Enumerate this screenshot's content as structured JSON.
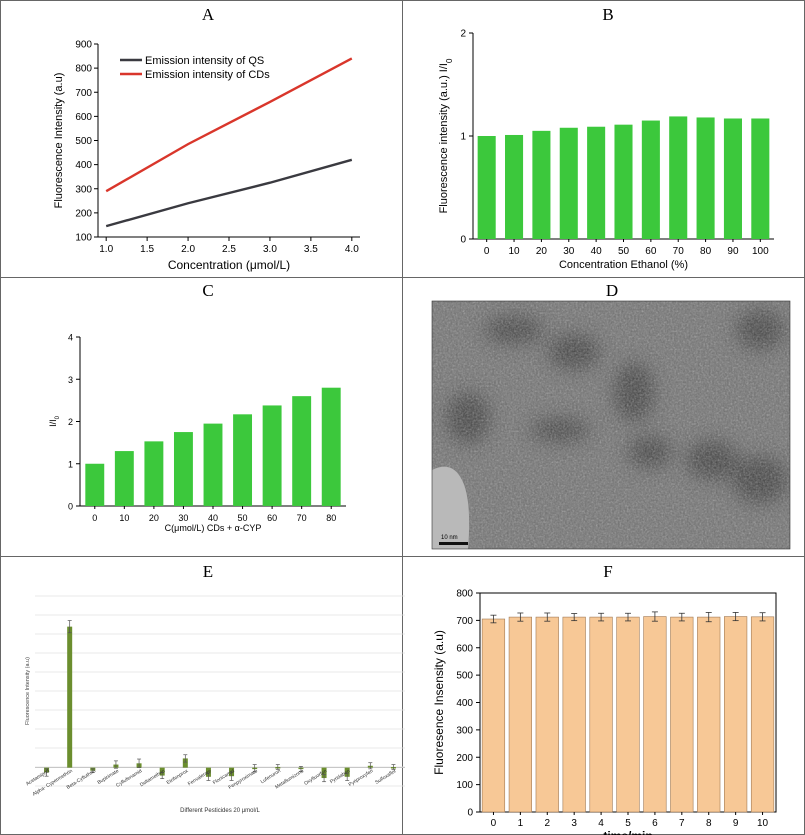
{
  "panels": {
    "A": "A",
    "B": "B",
    "C": "C",
    "D": "D",
    "E": "E",
    "F": "F"
  },
  "colors": {
    "green": "#3cc83c",
    "dark_line": "#3a3a40",
    "red_line": "#d9362b",
    "olive": "#6b8e2e",
    "peach": "#f7c896"
  },
  "chart_data": [
    {
      "panel": "A",
      "type": "line",
      "xlabel": "Concentration (μmol/L)",
      "ylabel": "Fluorescence Intensity (a.u)",
      "x": [
        1.0,
        2.0,
        3.0,
        4.0
      ],
      "xticks": [
        "1.0",
        "1.5",
        "2.0",
        "2.5",
        "3.0",
        "3.5",
        "4.0"
      ],
      "yticks": [
        "100",
        "200",
        "300",
        "400",
        "500",
        "600",
        "700",
        "800",
        "900"
      ],
      "ylim": [
        100,
        900
      ],
      "xlim": [
        0.9,
        4.1
      ],
      "series": [
        {
          "name": "Emission intensity of QS",
          "values": [
            145,
            240,
            325,
            420
          ],
          "color": "#3a3a40"
        },
        {
          "name": "Emission intensity of CDs",
          "values": [
            290,
            485,
            660,
            840
          ],
          "color": "#d9362b"
        }
      ],
      "legend": "top-left"
    },
    {
      "panel": "B",
      "type": "bar",
      "xlabel": "Concentration Ethanol (%)",
      "ylabel": "Fluorescence intensity (a.u.) I/I",
      "ylabel_sub": "0",
      "categories": [
        "0",
        "10",
        "20",
        "30",
        "40",
        "50",
        "60",
        "70",
        "80",
        "90",
        "100"
      ],
      "values": [
        1.0,
        1.01,
        1.05,
        1.08,
        1.09,
        1.11,
        1.15,
        1.19,
        1.18,
        1.17,
        1.17
      ],
      "yticks": [
        "0",
        "1",
        "2"
      ],
      "ylim": [
        0,
        2
      ]
    },
    {
      "panel": "C",
      "type": "bar",
      "xlabel": "C(μmol/L) CDs + α-CYP",
      "ylabel": "I/I",
      "ylabel_sub": "0",
      "categories": [
        "0",
        "10",
        "20",
        "30",
        "40",
        "50",
        "60",
        "70",
        "80"
      ],
      "values": [
        1.0,
        1.3,
        1.53,
        1.75,
        1.95,
        2.17,
        2.38,
        2.6,
        2.8
      ],
      "yticks": [
        "0",
        "1",
        "2",
        "3",
        "4"
      ],
      "ylim": [
        0,
        4
      ]
    },
    {
      "panel": "E",
      "type": "bar",
      "xlabel": "Different Pesticides 20 μmol/L",
      "ylabel": "Fluorescence Intensity (a.u)",
      "categories": [
        "Acetamiprid",
        "Alpha- Cypermethrin",
        "Beta-Cyfluthrin",
        "Bupirimate",
        "Cyflufenamid",
        "Deltamethrin",
        "Etofenprox",
        "Fenvalerate",
        "Flonicamid",
        "Fenpyroximate",
        "Lufenuron",
        "Metaflumizone",
        "Oxyfluorfen",
        "Pyridaben",
        "Pyriproxyfen",
        "Sulfoxaflor"
      ],
      "values": [
        -8,
        230,
        -5,
        5,
        7,
        -13,
        15,
        -15,
        -14,
        -1,
        1,
        -2,
        -17,
        -15,
        3,
        1
      ],
      "errors": [
        6,
        10,
        3,
        6,
        7,
        5,
        6,
        6,
        7,
        6,
        4,
        4,
        6,
        6,
        5,
        4
      ],
      "ylim": [
        -30,
        280
      ]
    },
    {
      "panel": "F",
      "type": "bar",
      "xlabel": "time/min",
      "ylabel": "Fluoresence Insensity (a.u)",
      "categories": [
        "0",
        "1",
        "2",
        "3",
        "4",
        "5",
        "6",
        "7",
        "8",
        "9",
        "10"
      ],
      "values": [
        705,
        712,
        712,
        712,
        712,
        712,
        714,
        712,
        712,
        714,
        713
      ],
      "errors": [
        14,
        15,
        15,
        13,
        14,
        14,
        17,
        14,
        17,
        15,
        15
      ],
      "yticks": [
        "0",
        "100",
        "200",
        "300",
        "400",
        "500",
        "600",
        "700",
        "800"
      ],
      "ylim": [
        0,
        800
      ]
    }
  ],
  "panel_d": {
    "scale_label": "10 nm"
  }
}
